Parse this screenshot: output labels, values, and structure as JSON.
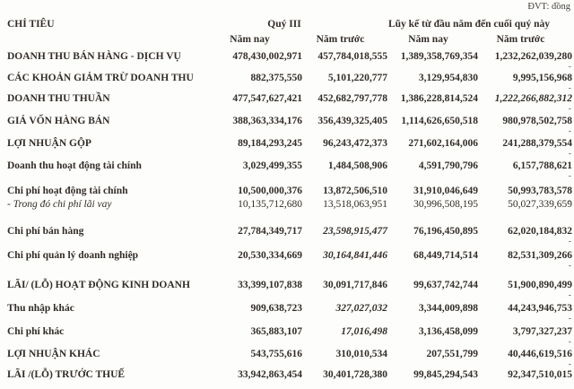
{
  "document": {
    "unit_label": "ĐVT: đồng",
    "columns": {
      "item": "CHỈ TIÊU",
      "group_quarter": "Quý III",
      "group_ytd": "Lũy kế từ đầu năm đến cuối quý này",
      "q3_this_year": "Năm nay",
      "q3_last_year": "Năm trước",
      "ytd_this_year": "Năm nay",
      "ytd_last_year": "Năm trước"
    },
    "rows": [
      {
        "label": "DOANH THU BÁN HÀNG - DỊCH VỤ",
        "sub": false,
        "values": [
          "478,430,002,971",
          "457,784,018,555",
          "1,389,358,769,354",
          "1,232,262,039,280"
        ],
        "italics": [
          false,
          false,
          false,
          false
        ],
        "dash": true
      },
      {
        "label": "CÁC KHOẢN GIẢM TRỪ DOANH THU",
        "sub": false,
        "values": [
          "882,375,550",
          "5,101,220,777",
          "3,129,954,830",
          "9,995,156,968"
        ],
        "italics": [
          false,
          false,
          false,
          false
        ],
        "dash": true
      },
      {
        "label": "DOANH THU THUẦN",
        "sub": false,
        "values": [
          "477,547,627,421",
          "452,682,797,778",
          "1,386,228,814,524",
          "1,222,266,882,312"
        ],
        "italics": [
          false,
          false,
          false,
          true
        ],
        "dash": true
      },
      {
        "label": "GIÁ VỐN HÀNG BÁN",
        "sub": false,
        "values": [
          "388,363,334,176",
          "356,439,325,405",
          "1,114,626,650,518",
          "980,978,502,758"
        ],
        "italics": [
          false,
          false,
          false,
          false
        ],
        "dash": true
      },
      {
        "label": "LỢI NHUẬN GỘP",
        "sub": false,
        "values": [
          "89,184,293,245",
          "96,243,472,373",
          "271,602,164,006",
          "241,288,379,554"
        ],
        "italics": [
          false,
          false,
          false,
          false
        ],
        "dash": true
      },
      {
        "label": "Doanh thu hoạt động tài chính",
        "sub": false,
        "values": [
          "3,029,499,355",
          "1,484,508,906",
          "4,591,790,796",
          "6,157,788,621"
        ],
        "italics": [
          false,
          false,
          false,
          false
        ],
        "dash": true
      },
      {
        "label": "Chi phí hoạt động tài chính",
        "sub": false,
        "values": [
          "10,500,000,376",
          "13,872,506,510",
          "31,910,046,649",
          "50,993,783,578"
        ],
        "italics": [
          false,
          false,
          false,
          false
        ],
        "dash": true
      },
      {
        "label": "- Trong đó chi phí lãi vay",
        "sub": true,
        "values": [
          "10,135,712,680",
          "13,518,063,951",
          "30,996,508,195",
          "50,027,339,659"
        ],
        "italics": [
          false,
          false,
          false,
          false
        ],
        "dash": false
      },
      {
        "label": "Chi phí bán hàng",
        "sub": false,
        "values": [
          "27,784,349,717",
          "23,598,915,477",
          "76,196,450,895",
          "62,020,184,832"
        ],
        "italics": [
          false,
          true,
          false,
          false
        ],
        "dash": true
      },
      {
        "label": "Chi phí quản lý doanh nghiệp",
        "sub": false,
        "values": [
          "20,530,334,669",
          "30,164,841,446",
          "68,449,714,514",
          "82,531,309,266"
        ],
        "italics": [
          false,
          true,
          false,
          false
        ],
        "dash": true
      },
      {
        "label": "LÃI/ (LỖ) HOẠT ĐỘNG KINH DOANH",
        "sub": false,
        "values": [
          "33,399,107,838",
          "30,091,717,846",
          "99,637,742,744",
          "51,900,890,499"
        ],
        "italics": [
          false,
          false,
          false,
          false
        ],
        "dash": true
      },
      {
        "label": "Thu nhập khác",
        "sub": false,
        "values": [
          "909,638,723",
          "327,027,032",
          "3,344,009,898",
          "44,243,946,753"
        ],
        "italics": [
          false,
          true,
          false,
          false
        ],
        "dash": true
      },
      {
        "label": "Chi phí khác",
        "sub": false,
        "values": [
          "365,883,107",
          "17,016,498",
          "3,136,458,099",
          "3,797,327,237"
        ],
        "italics": [
          false,
          true,
          false,
          false
        ],
        "dash": true
      },
      {
        "label": "LỢI NHUẬN KHÁC",
        "sub": false,
        "values": [
          "543,755,616",
          "310,010,534",
          "207,551,799",
          "40,446,619,516"
        ],
        "italics": [
          false,
          false,
          false,
          false
        ],
        "dash": true
      },
      {
        "label": "LÃI /(LỖ) TRƯỚC THUẾ",
        "sub": false,
        "values": [
          "33,942,863,454",
          "30,401,728,380",
          "99,845,294,543",
          "92,347,510,015"
        ],
        "italics": [
          false,
          false,
          false,
          false
        ],
        "dash": false
      }
    ]
  }
}
